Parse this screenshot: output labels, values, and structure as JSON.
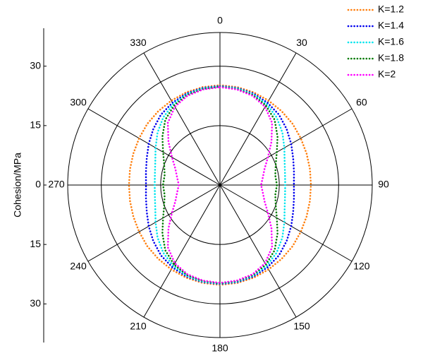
{
  "chart_data": {
    "type": "polar",
    "y_label": "Cohesion/MPa",
    "rlim": [
      0,
      38.5
    ],
    "rticks": [
      15,
      30
    ],
    "thetaticks": [
      0,
      30,
      60,
      90,
      120,
      150,
      180,
      210,
      240,
      270,
      300,
      330
    ],
    "ylim": [
      -38.5,
      38.5
    ],
    "yticks": [
      30,
      15,
      0,
      {
        "value": -15,
        "label": "15"
      },
      {
        "value": -30,
        "label": "30"
      }
    ],
    "theta": [
      0,
      10,
      20,
      30,
      40,
      50,
      60,
      70,
      80,
      90,
      100,
      110,
      120,
      130,
      140,
      150,
      160,
      170,
      180,
      190,
      200,
      210,
      220,
      230,
      240,
      250,
      260,
      270,
      280,
      290,
      300,
      310,
      320,
      330,
      340,
      350
    ],
    "series": [
      {
        "name": "K=1.2",
        "color": "#ff7f0e",
        "values": [
          25.2,
          25.1,
          24.9,
          24.6,
          24.3,
          24,
          23.6,
          23.3,
          23.1,
          23,
          23.1,
          23.3,
          23.6,
          24,
          24.3,
          24.6,
          24.9,
          25.1,
          25.2,
          25.1,
          24.9,
          24.6,
          24.3,
          24,
          23.6,
          23.3,
          23.1,
          23,
          23.1,
          23.3,
          23.6,
          24,
          24.3,
          24.6,
          24.9,
          25.1
        ]
      },
      {
        "name": "K=1.4",
        "color": "#0000ee",
        "values": [
          25,
          24.9,
          24.6,
          24,
          23.2,
          22,
          20.8,
          19.7,
          19,
          18.7,
          19,
          19.7,
          20.8,
          22,
          23.2,
          24,
          24.6,
          24.9,
          25,
          24.9,
          24.6,
          24,
          23.2,
          22,
          20.8,
          19.7,
          19,
          18.7,
          19,
          19.7,
          20.8,
          22,
          23.2,
          24,
          24.6,
          24.9
        ]
      },
      {
        "name": "K=1.6",
        "color": "#00e5ee",
        "values": [
          24.9,
          24.8,
          24.4,
          23.6,
          22.3,
          20.6,
          18.8,
          17.4,
          16.7,
          16.5,
          16.7,
          17.4,
          18.8,
          20.6,
          22.3,
          23.6,
          24.4,
          24.8,
          24.9,
          24.8,
          24.4,
          23.6,
          22.3,
          20.6,
          18.8,
          17.4,
          16.7,
          16.5,
          16.7,
          17.4,
          18.8,
          20.6,
          22.3,
          23.6,
          24.4,
          24.8
        ]
      },
      {
        "name": "K=1.8",
        "color": "#007a00",
        "values": [
          24.8,
          24.6,
          24.2,
          23.2,
          21.5,
          19,
          16.6,
          15,
          14.2,
          14.4,
          14.2,
          15,
          16.6,
          19,
          21.5,
          23.2,
          24.2,
          24.6,
          24.8,
          24.6,
          24.2,
          23.2,
          21.5,
          19,
          16.6,
          15,
          14.2,
          14.4,
          14.2,
          15,
          16.6,
          19,
          21.5,
          23.2,
          24.2,
          24.6
        ]
      },
      {
        "name": "K=2",
        "color": "#ff00ff",
        "values": [
          24.7,
          24.5,
          24,
          22.8,
          20.5,
          17,
          14,
          12,
          11,
          10.4,
          11,
          12,
          14,
          17,
          20.5,
          22.8,
          24,
          24.5,
          24.7,
          24.5,
          24,
          22.8,
          20.5,
          17,
          14,
          12,
          11,
          10.4,
          11,
          12,
          14,
          17,
          20.5,
          22.8,
          24,
          24.5
        ]
      }
    ]
  }
}
